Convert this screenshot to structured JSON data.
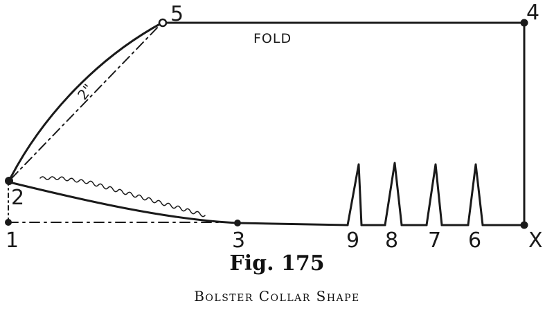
{
  "figure": {
    "number": "Fig. 175",
    "caption": "Bolster Collar Shape"
  },
  "labels": {
    "fold": "FOLD",
    "dimension": "2\"",
    "points": {
      "p1": "1",
      "p2": "2",
      "p3": "3",
      "p4": "4",
      "p5": "5",
      "p6": "6",
      "p7": "7",
      "p8": "8",
      "p9": "9",
      "px": "X"
    }
  }
}
